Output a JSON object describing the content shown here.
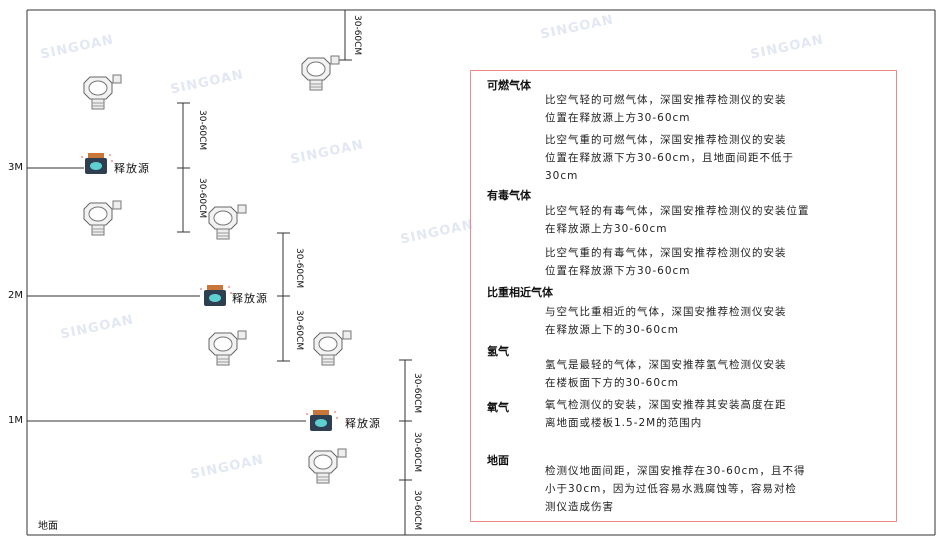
{
  "watermark": "SINGOAN 深国安",
  "levels": {
    "m3": "3M",
    "m2": "2M",
    "m1": "1M",
    "ground": "地面"
  },
  "source_label": "释放源",
  "dimension_label": "30-60CM",
  "colors": {
    "box_border": "#e88a8a",
    "source_body": "#2f3f52",
    "source_cap": "#c8763a",
    "source_face": "#5fd0d0"
  },
  "info": {
    "combustible": {
      "title": "可燃气体",
      "light": [
        "比空气轻的可燃气体，深国安推荐检测仪的安装",
        "位置在释放源上方30-60cm"
      ],
      "heavy": [
        "比空气重的可燃气体，深国安推荐检测仪的安装",
        "位置在释放源下方30-60cm，且地面间距不低于",
        "30cm"
      ]
    },
    "toxic": {
      "title": "有毒气体",
      "light": [
        "比空气轻的有毒气体，深国安推荐检测仪的安装位置",
        "在释放源上方30-60cm"
      ],
      "heavy": [
        "比空气重的有毒气体，深国安推荐检测仪的安装",
        "位置在释放源下方30-60cm"
      ]
    },
    "similar": {
      "title": "比重相近气体",
      "text": [
        "与空气比重相近的气体，深国安推荐检测仪安装",
        "在释放源上下的30-60cm"
      ]
    },
    "hydrogen": {
      "title": "氢气",
      "text": [
        "氢气是最轻的气体，深国安推荐氢气检测仪安装",
        "在楼板面下方的30-60cm"
      ]
    },
    "oxygen": {
      "title": "氧气",
      "text": [
        "氧气检测仪的安装，深国安推荐其安装高度在距",
        "离地面或楼板1.5-2M的范围内"
      ]
    },
    "ground": {
      "title": "地面",
      "text": [
        "检测仪地面间距，深国安推荐在30-60cm，且不得",
        "小于30cm，因为过低容易水溅腐蚀等，容易对检",
        "测仪造成伤害"
      ]
    }
  }
}
